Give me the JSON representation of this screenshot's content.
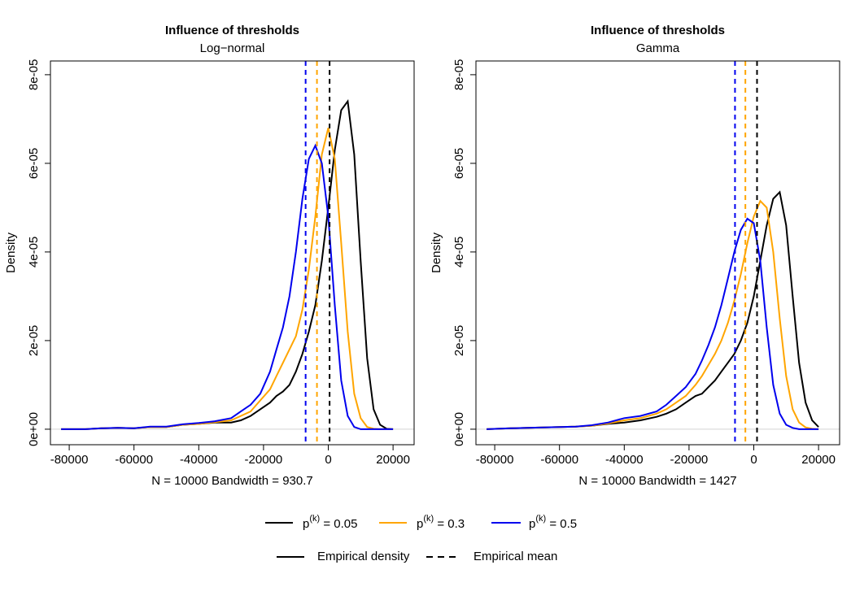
{
  "chart_data": [
    {
      "type": "line",
      "title": "Influence of thresholds",
      "subtitle": "Log−normal",
      "x_label": "N = 10000   Bandwidth = 930.7",
      "y_label": "Density",
      "xlim": [
        -85800,
        26500
      ],
      "ylim": [
        -3.5e-06,
        8.31e-05
      ],
      "xticks": [
        -80000,
        -60000,
        -40000,
        -20000,
        0,
        20000
      ],
      "yticks": [
        {
          "value": 0,
          "label": "0e+00"
        },
        {
          "value": 2e-05,
          "label": "2e-05"
        },
        {
          "value": 4e-05,
          "label": "4e-05"
        },
        {
          "value": 6e-05,
          "label": "6e-05"
        },
        {
          "value": 8e-05,
          "label": "8e-05"
        }
      ],
      "zero_line": true,
      "x": [
        -82500,
        -75000,
        -70000,
        -65000,
        -60000,
        -55000,
        -50000,
        -45000,
        -40000,
        -35000,
        -30000,
        -27000,
        -24000,
        -21000,
        -18000,
        -16000,
        -14000,
        -12000,
        -10000,
        -8000,
        -6000,
        -4000,
        -2000,
        0,
        2000,
        4000,
        6000,
        8000,
        10000,
        12000,
        14000,
        16000,
        18000,
        20000
      ],
      "series": [
        {
          "name": "p(k) = 0.05",
          "color": "#000000",
          "mean": 400,
          "values": [
            0,
            0,
            2e-07,
            3e-07,
            2e-07,
            5e-07,
            5e-07,
            1e-06,
            1.2e-06,
            1.5e-06,
            1.5e-06,
            2e-06,
            3e-06,
            4.5e-06,
            6e-06,
            7.5e-06,
            8.5e-06,
            1e-05,
            1.3e-05,
            1.7e-05,
            2.2e-05,
            2.8e-05,
            3.8e-05,
            5e-05,
            6.3e-05,
            7.2e-05,
            7.4e-05,
            6.2e-05,
            3.8e-05,
            1.6e-05,
            4.5e-06,
            1e-06,
            1e-07,
            0
          ]
        },
        {
          "name": "p(k) = 0.3",
          "color": "#ffa500",
          "mean": -3500,
          "values": [
            0,
            0,
            2e-07,
            3e-07,
            2e-07,
            5e-07,
            5e-07,
            1e-06,
            1.2e-06,
            1.6e-06,
            2e-06,
            3e-06,
            4e-06,
            6.5e-06,
            9e-06,
            1.2e-05,
            1.5e-05,
            1.8e-05,
            2.1e-05,
            2.7e-05,
            3.6e-05,
            4.8e-05,
            6.2e-05,
            6.8e-05,
            6.1e-05,
            4.2e-05,
            2.2e-05,
            8e-06,
            2.5e-06,
            5e-07,
            1e-07,
            0,
            0,
            0
          ]
        },
        {
          "name": "p(k) = 0.5",
          "color": "#0000ee",
          "mean": -7000,
          "values": [
            0,
            0,
            2e-07,
            3e-07,
            2e-07,
            6e-07,
            6e-07,
            1.1e-06,
            1.4e-06,
            1.8e-06,
            2.5e-06,
            4e-06,
            5.5e-06,
            8e-06,
            1.3e-05,
            1.8e-05,
            2.3e-05,
            3e-05,
            4e-05,
            5.2e-05,
            6.1e-05,
            6.4e-05,
            6e-05,
            4.8e-05,
            2.8e-05,
            1.1e-05,
            3e-06,
            5e-07,
            0,
            0,
            0,
            0,
            0,
            0
          ]
        }
      ]
    },
    {
      "type": "line",
      "title": "Influence of thresholds",
      "subtitle": "Gamma",
      "x_label": "N = 10000   Bandwidth = 1427",
      "y_label": "Density",
      "xlim": [
        -85800,
        26500
      ],
      "ylim": [
        -3.5e-06,
        8.31e-05
      ],
      "xticks": [
        -80000,
        -60000,
        -40000,
        -20000,
        0,
        20000
      ],
      "yticks": [
        {
          "value": 0,
          "label": "0e+00"
        },
        {
          "value": 2e-05,
          "label": "2e-05"
        },
        {
          "value": 4e-05,
          "label": "4e-05"
        },
        {
          "value": 6e-05,
          "label": "6e-05"
        },
        {
          "value": 8e-05,
          "label": "8e-05"
        }
      ],
      "zero_line": true,
      "x": [
        -82500,
        -75000,
        -70000,
        -65000,
        -60000,
        -55000,
        -50000,
        -45000,
        -40000,
        -35000,
        -30000,
        -27000,
        -24000,
        -21000,
        -18000,
        -16000,
        -14000,
        -12000,
        -10000,
        -8000,
        -6000,
        -4000,
        -2000,
        0,
        2000,
        4000,
        6000,
        8000,
        10000,
        12000,
        14000,
        16000,
        18000,
        20000
      ],
      "series": [
        {
          "color": "#000000",
          "mean": 1000,
          "values": [
            0,
            2e-07,
            3e-07,
            4e-07,
            5e-07,
            6e-07,
            8e-07,
            1.2e-06,
            1.5e-06,
            2e-06,
            2.8e-06,
            3.5e-06,
            4.5e-06,
            6e-06,
            7.5e-06,
            8e-06,
            9.5e-06,
            1.1e-05,
            1.3e-05,
            1.5e-05,
            1.7e-05,
            2e-05,
            2.4e-05,
            3e-05,
            3.8e-05,
            4.6e-05,
            5.2e-05,
            5.35e-05,
            4.6e-05,
            3e-05,
            1.5e-05,
            6e-06,
            2e-06,
            5e-07
          ]
        },
        {
          "color": "#ffa500",
          "mean": -2600,
          "values": [
            0,
            2e-07,
            3e-07,
            4e-07,
            5e-07,
            6e-07,
            8e-07,
            1.3e-06,
            2e-06,
            2.5e-06,
            3.5e-06,
            4.5e-06,
            6e-06,
            7.5e-06,
            1e-05,
            1.2e-05,
            1.45e-05,
            1.7e-05,
            2e-05,
            2.4e-05,
            2.9e-05,
            3.5e-05,
            4.2e-05,
            4.8e-05,
            5.15e-05,
            5e-05,
            4e-05,
            2.5e-05,
            1.2e-05,
            4.5e-06,
            1.5e-06,
            4e-07,
            1e-07,
            0
          ]
        },
        {
          "color": "#0000ee",
          "mean": -5800,
          "values": [
            0,
            2e-07,
            3e-07,
            4e-07,
            5e-07,
            6e-07,
            9e-07,
            1.5e-06,
            2.5e-06,
            3e-06,
            4e-06,
            5.5e-06,
            7.5e-06,
            9.5e-06,
            1.25e-05,
            1.55e-05,
            1.9e-05,
            2.3e-05,
            2.8e-05,
            3.4e-05,
            4e-05,
            4.5e-05,
            4.75e-05,
            4.65e-05,
            3.8e-05,
            2.3e-05,
            1e-05,
            3.5e-06,
            1e-06,
            3e-07,
            0,
            0,
            0,
            0
          ]
        }
      ]
    }
  ],
  "line_styles": [
    "Empirical density",
    "Empirical mean"
  ]
}
